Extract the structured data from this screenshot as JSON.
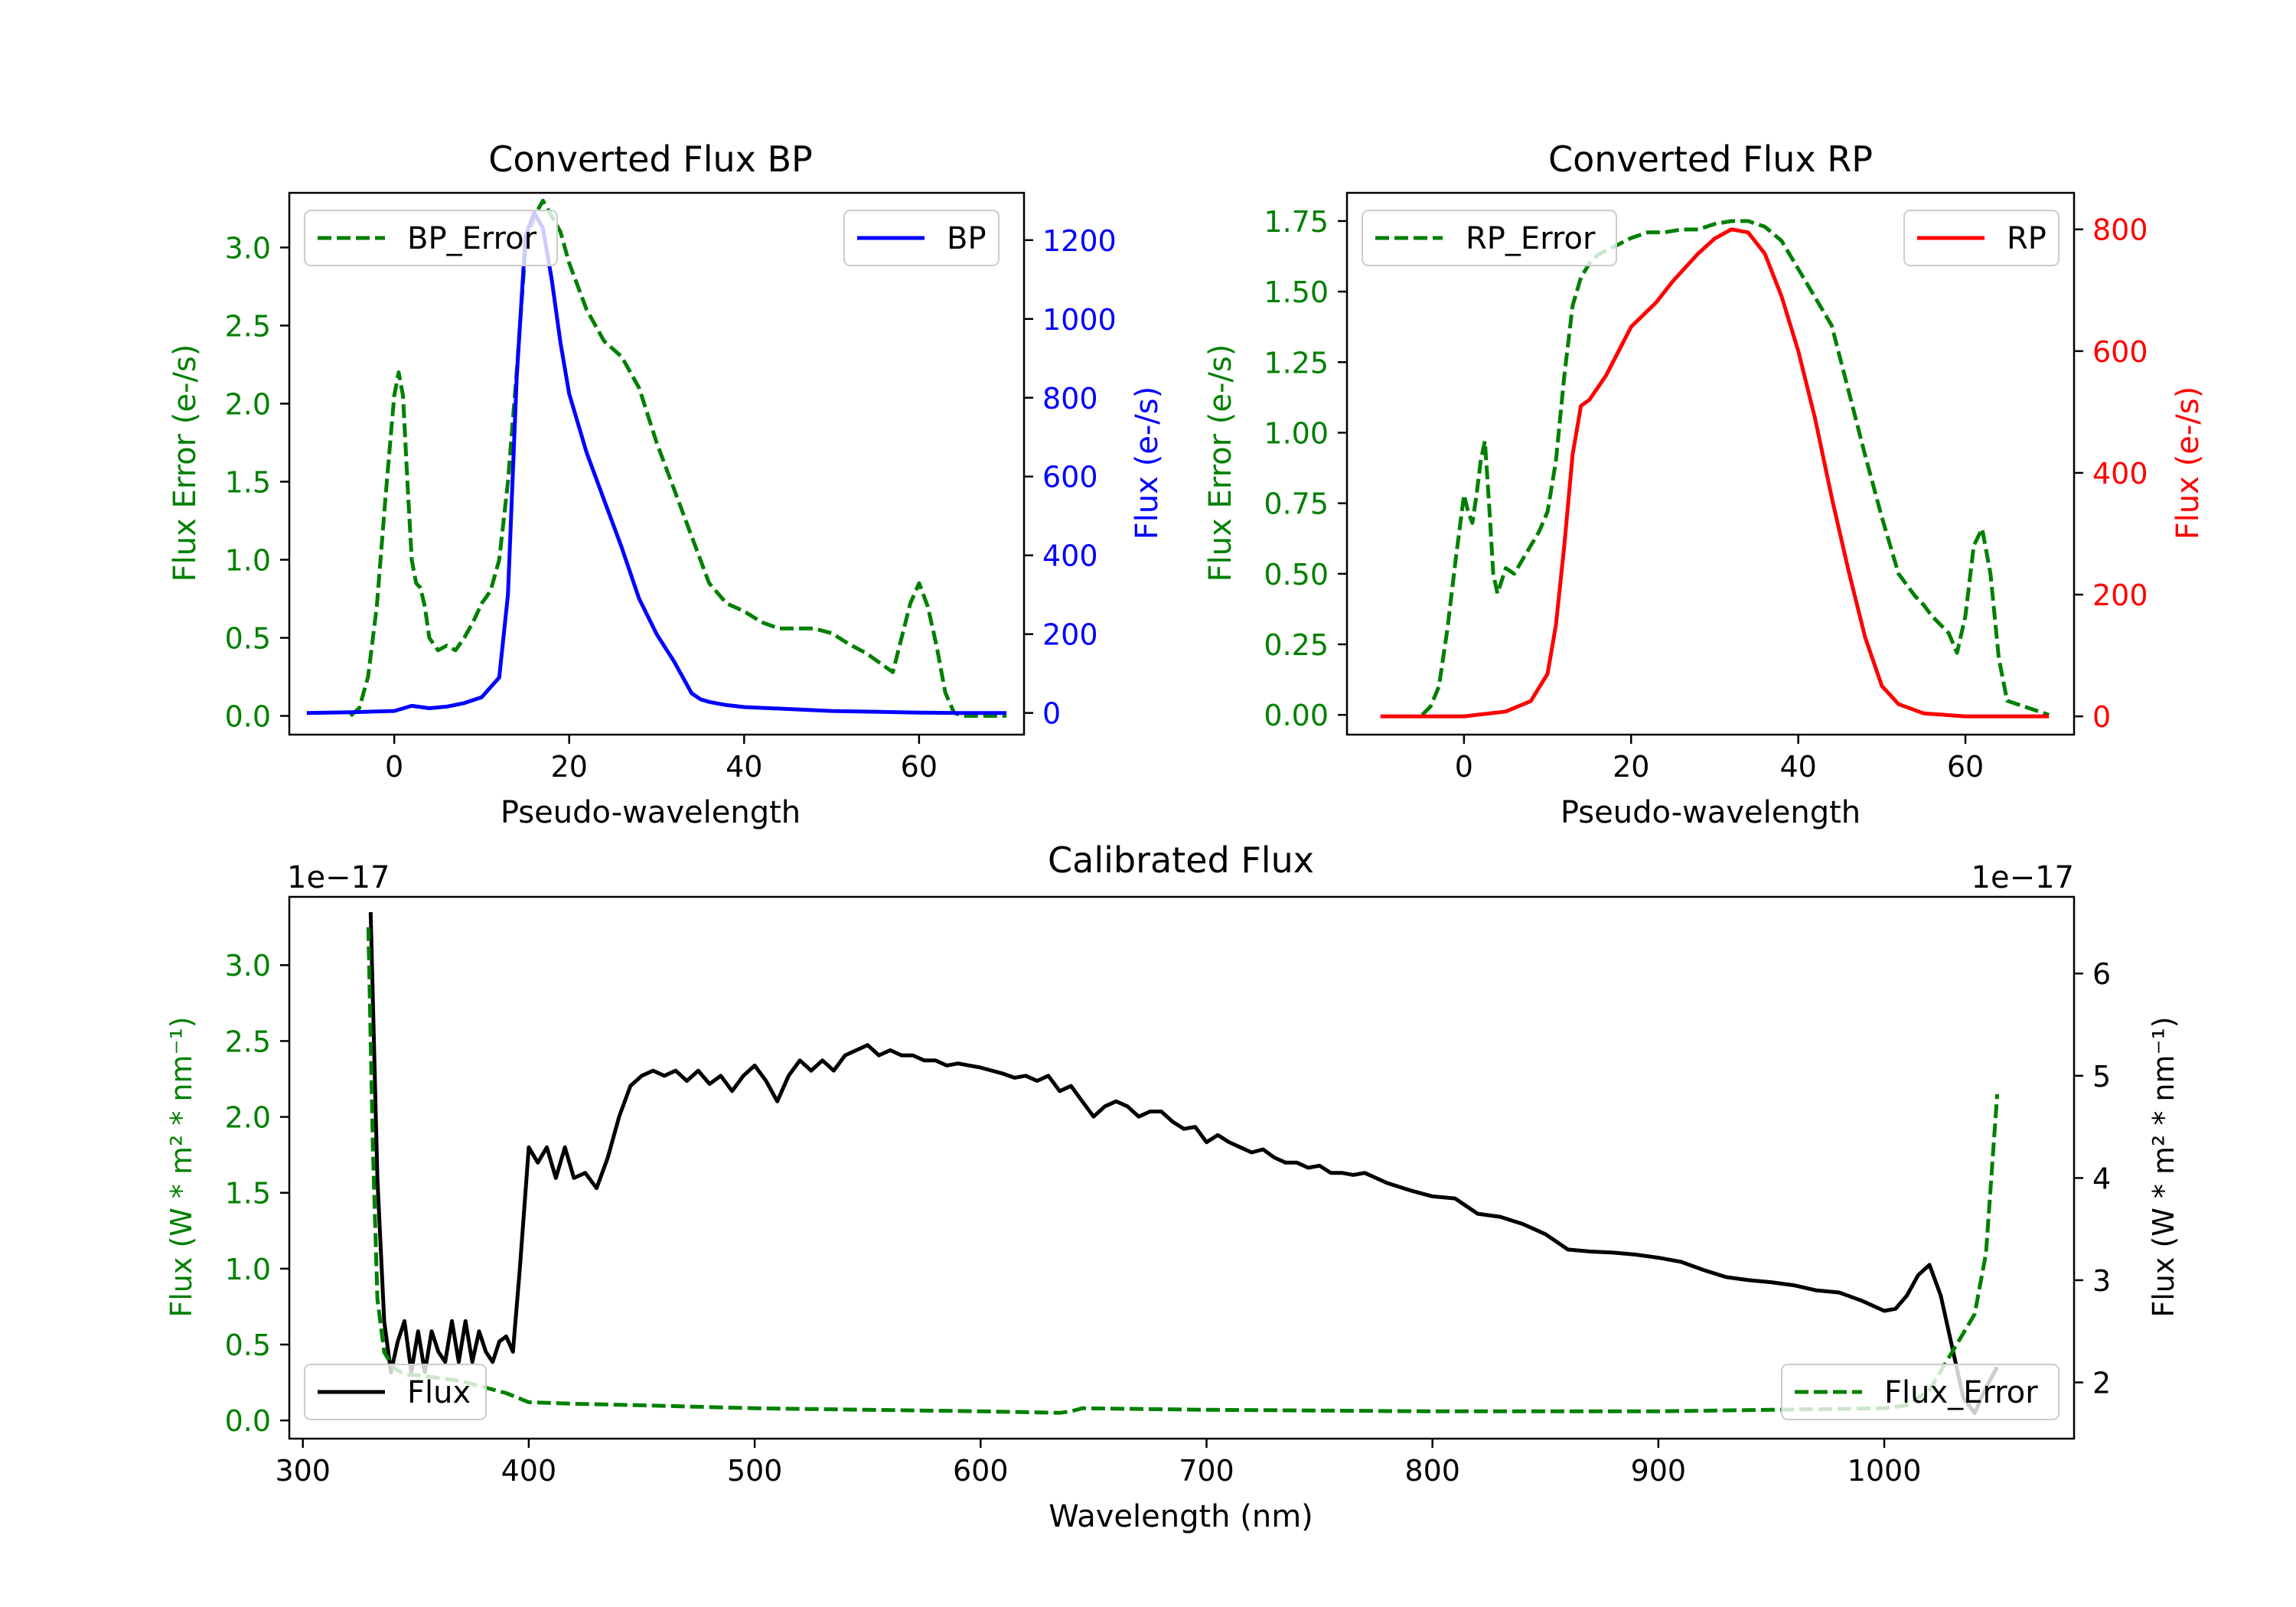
{
  "chart_data": [
    {
      "type": "line",
      "title": "Converted Flux BP",
      "xlabel": "Pseudo-wavelength",
      "ylabel_left": "Flux Error (e-/s)",
      "ylabel_right": "Flux (e-/s)",
      "xlim": [
        -12,
        72
      ],
      "ylim_left": [
        -0.12,
        3.35
      ],
      "ylim_right": [
        -55,
        1320
      ],
      "x_ticks": [
        0,
        20,
        40,
        60
      ],
      "x_tick_labels": [
        "0",
        "20",
        "40",
        "60"
      ],
      "y_left_ticks": [
        0,
        0.5,
        1.0,
        1.5,
        2.0,
        2.5,
        3.0
      ],
      "y_left_tick_labels": [
        "0.0",
        "0.5",
        "1.0",
        "1.5",
        "2.0",
        "2.5",
        "3.0"
      ],
      "y_right_ticks": [
        0,
        200,
        400,
        600,
        800,
        1000,
        1200
      ],
      "y_right_tick_labels": [
        "0",
        "200",
        "400",
        "600",
        "800",
        "1000",
        "1200"
      ],
      "left_axis_color": "#008000",
      "right_axis_color": "#0000ff",
      "legend": [
        {
          "label": "BP_Error",
          "placement": "upper-left",
          "style": "dashed",
          "color": "#008000"
        },
        {
          "label": "BP",
          "placement": "upper-right",
          "style": "solid",
          "color": "#0000ff"
        }
      ],
      "series": [
        {
          "name": "BP_Error",
          "axis": "left",
          "color": "#008000",
          "style": "dashed",
          "x": [
            -5,
            -4,
            -3,
            -2,
            -1,
            0,
            0.5,
            1,
            1.5,
            2,
            2.5,
            3,
            3.5,
            4,
            5,
            6,
            7,
            8,
            9,
            10,
            11,
            12,
            13,
            14,
            15,
            16,
            17,
            18,
            19,
            20,
            22,
            24,
            26,
            28,
            30,
            32,
            34,
            36,
            38,
            40,
            42,
            44,
            46,
            48,
            50,
            52,
            54,
            56,
            57,
            58,
            59,
            60,
            61,
            62,
            63,
            64,
            65,
            70
          ],
          "values": [
            0.0,
            0.05,
            0.25,
            0.7,
            1.4,
            2.05,
            2.2,
            2.05,
            1.5,
            1.0,
            0.85,
            0.82,
            0.7,
            0.5,
            0.42,
            0.45,
            0.42,
            0.5,
            0.6,
            0.72,
            0.8,
            1.0,
            1.5,
            2.2,
            3.0,
            3.2,
            3.3,
            3.2,
            3.1,
            2.9,
            2.6,
            2.4,
            2.3,
            2.1,
            1.75,
            1.45,
            1.15,
            0.85,
            0.72,
            0.67,
            0.6,
            0.56,
            0.56,
            0.56,
            0.53,
            0.46,
            0.4,
            0.32,
            0.28,
            0.5,
            0.72,
            0.85,
            0.7,
            0.45,
            0.15,
            0.02,
            0.0,
            0.0
          ]
        },
        {
          "name": "BP",
          "axis": "right",
          "color": "#0000ff",
          "style": "solid",
          "x": [
            -10,
            -5,
            0,
            2,
            4,
            6,
            8,
            10,
            12,
            13,
            14,
            15,
            16,
            17,
            18,
            19,
            20,
            22,
            24,
            26,
            28,
            30,
            32,
            34,
            35,
            36,
            38,
            40,
            45,
            50,
            55,
            60,
            65,
            70
          ],
          "values": [
            0,
            2,
            5,
            18,
            12,
            16,
            25,
            40,
            90,
            300,
            850,
            1210,
            1270,
            1230,
            1100,
            940,
            810,
            660,
            540,
            420,
            290,
            200,
            130,
            50,
            35,
            28,
            20,
            15,
            10,
            5,
            3,
            1,
            0,
            0
          ]
        }
      ]
    },
    {
      "type": "line",
      "title": "Converted Flux RP",
      "xlabel": "Pseudo-wavelength",
      "ylabel_left": "Flux Error (e-/s)",
      "ylabel_right": "Flux (e-/s)",
      "xlim": [
        -14,
        73
      ],
      "ylim_left": [
        -0.07,
        1.85
      ],
      "ylim_right": [
        -30,
        860
      ],
      "x_ticks": [
        0,
        20,
        40,
        60
      ],
      "x_tick_labels": [
        "0",
        "20",
        "40",
        "60"
      ],
      "y_left_ticks": [
        0,
        0.25,
        0.5,
        0.75,
        1.0,
        1.25,
        1.5,
        1.75
      ],
      "y_left_tick_labels": [
        "0.00",
        "0.25",
        "0.50",
        "0.75",
        "1.00",
        "1.25",
        "1.50",
        "1.75"
      ],
      "y_right_ticks": [
        0,
        200,
        400,
        600,
        800
      ],
      "y_right_tick_labels": [
        "0",
        "200",
        "400",
        "600",
        "800"
      ],
      "left_axis_color": "#008000",
      "right_axis_color": "#ff0000",
      "legend": [
        {
          "label": "RP_Error",
          "placement": "upper-left",
          "style": "dashed",
          "color": "#008000"
        },
        {
          "label": "RP",
          "placement": "upper-right",
          "style": "solid",
          "color": "#ff0000"
        }
      ],
      "series": [
        {
          "name": "RP_Error",
          "axis": "left",
          "color": "#008000",
          "style": "dashed",
          "x": [
            -5,
            -4,
            -3,
            -2,
            -1,
            0,
            0.5,
            1,
            1.5,
            2,
            2.5,
            3,
            3.5,
            4,
            5,
            6,
            7,
            8,
            9,
            10,
            11,
            12,
            13,
            14,
            15,
            16,
            18,
            20,
            22,
            24,
            26,
            28,
            30,
            32,
            34,
            36,
            38,
            40,
            42,
            44,
            46,
            48,
            50,
            52,
            54,
            55,
            56,
            57,
            58,
            59,
            60,
            61,
            62,
            63,
            64,
            65,
            70
          ],
          "values": [
            0.0,
            0.03,
            0.1,
            0.3,
            0.55,
            0.78,
            0.72,
            0.68,
            0.78,
            0.9,
            0.97,
            0.75,
            0.5,
            0.43,
            0.52,
            0.5,
            0.55,
            0.6,
            0.65,
            0.72,
            0.9,
            1.2,
            1.45,
            1.55,
            1.6,
            1.63,
            1.66,
            1.69,
            1.71,
            1.71,
            1.72,
            1.72,
            1.74,
            1.75,
            1.75,
            1.73,
            1.68,
            1.58,
            1.48,
            1.38,
            1.15,
            0.92,
            0.7,
            0.5,
            0.42,
            0.39,
            0.35,
            0.32,
            0.29,
            0.22,
            0.35,
            0.6,
            0.66,
            0.5,
            0.2,
            0.05,
            0.0
          ]
        },
        {
          "name": "RP",
          "axis": "right",
          "color": "#ff0000",
          "style": "solid",
          "x": [
            -10,
            -5,
            0,
            5,
            8,
            10,
            11,
            12,
            13,
            14,
            15,
            17,
            20,
            23,
            25,
            28,
            30,
            32,
            34,
            36,
            38,
            40,
            42,
            44,
            46,
            48,
            50,
            52,
            55,
            60,
            65,
            70
          ],
          "values": [
            0,
            0,
            0,
            8,
            25,
            70,
            150,
            280,
            430,
            510,
            520,
            560,
            640,
            680,
            715,
            760,
            785,
            800,
            795,
            760,
            690,
            600,
            490,
            360,
            240,
            130,
            50,
            20,
            5,
            0,
            0,
            0
          ]
        }
      ]
    },
    {
      "type": "line",
      "title": "Calibrated Flux",
      "xlabel": "Wavelength (nm)",
      "ylabel_left": "Flux (W * m² * nm⁻¹)",
      "ylabel_right": "Flux (W * m² * nm⁻¹)",
      "offset_left": "1e−17",
      "offset_right": "1e−17",
      "xlim": [
        294,
        1084
      ],
      "ylim_left": [
        -0.12,
        3.45
      ],
      "ylim_right": [
        1.45,
        6.75
      ],
      "x_ticks": [
        300,
        400,
        500,
        600,
        700,
        800,
        900,
        1000
      ],
      "x_tick_labels": [
        "300",
        "400",
        "500",
        "600",
        "700",
        "800",
        "900",
        "1000"
      ],
      "y_left_ticks": [
        0,
        0.5,
        1.0,
        1.5,
        2.0,
        2.5,
        3.0
      ],
      "y_left_tick_labels": [
        "0.0",
        "0.5",
        "1.0",
        "1.5",
        "2.0",
        "2.5",
        "3.0"
      ],
      "y_right_ticks": [
        2,
        3,
        4,
        5,
        6
      ],
      "y_right_tick_labels": [
        "2",
        "3",
        "4",
        "5",
        "6"
      ],
      "left_axis_color": "#008000",
      "right_axis_color": "#000000",
      "legend": [
        {
          "label": "Flux",
          "placement": "lower-left",
          "style": "solid",
          "color": "#000000"
        },
        {
          "label": "Flux_Error",
          "placement": "lower-right",
          "style": "dashed",
          "color": "#008000"
        }
      ],
      "series": [
        {
          "name": "Flux",
          "axis": "right",
          "color": "#000000",
          "style": "solid",
          "x": [
            330,
            333,
            336,
            339,
            342,
            345,
            348,
            351,
            354,
            357,
            360,
            363,
            366,
            369,
            372,
            375,
            378,
            381,
            384,
            387,
            390,
            393,
            396,
            400,
            404,
            408,
            412,
            416,
            420,
            425,
            430,
            435,
            440,
            445,
            450,
            455,
            460,
            465,
            470,
            475,
            480,
            485,
            490,
            495,
            500,
            505,
            510,
            515,
            520,
            525,
            530,
            535,
            540,
            545,
            550,
            555,
            560,
            565,
            570,
            575,
            580,
            585,
            590,
            595,
            600,
            605,
            610,
            615,
            620,
            625,
            630,
            635,
            640,
            645,
            650,
            655,
            660,
            665,
            670,
            675,
            680,
            685,
            690,
            695,
            700,
            705,
            710,
            715,
            720,
            725,
            730,
            735,
            740,
            745,
            750,
            755,
            760,
            765,
            770,
            780,
            790,
            800,
            810,
            820,
            830,
            840,
            850,
            860,
            870,
            880,
            890,
            900,
            910,
            920,
            930,
            940,
            950,
            960,
            970,
            980,
            990,
            1000,
            1005,
            1010,
            1015,
            1020,
            1025,
            1030,
            1035,
            1040,
            1045,
            1050
          ],
          "values": [
            6.6,
            4.0,
            2.6,
            2.1,
            2.4,
            2.6,
            2.1,
            2.5,
            2.1,
            2.5,
            2.3,
            2.2,
            2.6,
            2.2,
            2.6,
            2.2,
            2.5,
            2.3,
            2.2,
            2.4,
            2.45,
            2.3,
            3.1,
            4.3,
            4.15,
            4.3,
            4.0,
            4.3,
            4.0,
            4.05,
            3.9,
            4.2,
            4.6,
            4.9,
            5.0,
            5.05,
            5.0,
            5.05,
            4.95,
            5.05,
            4.92,
            5.0,
            4.85,
            5.0,
            5.1,
            4.95,
            4.75,
            5.0,
            5.15,
            5.05,
            5.15,
            5.05,
            5.2,
            5.25,
            5.3,
            5.2,
            5.25,
            5.2,
            5.2,
            5.15,
            5.15,
            5.1,
            5.12,
            5.1,
            5.08,
            5.05,
            5.02,
            4.98,
            5.0,
            4.95,
            5.0,
            4.85,
            4.9,
            4.75,
            4.6,
            4.7,
            4.75,
            4.7,
            4.6,
            4.65,
            4.65,
            4.55,
            4.48,
            4.5,
            4.35,
            4.42,
            4.35,
            4.3,
            4.25,
            4.28,
            4.2,
            4.15,
            4.15,
            4.1,
            4.12,
            4.05,
            4.05,
            4.03,
            4.05,
            3.95,
            3.88,
            3.82,
            3.8,
            3.65,
            3.62,
            3.55,
            3.45,
            3.3,
            3.28,
            3.27,
            3.25,
            3.22,
            3.18,
            3.1,
            3.03,
            3.0,
            2.98,
            2.95,
            2.9,
            2.88,
            2.8,
            2.7,
            2.72,
            2.85,
            3.05,
            3.15,
            2.85,
            2.35,
            1.85,
            1.7,
            1.95,
            2.15
          ]
        },
        {
          "name": "Flux_Error",
          "axis": "left",
          "color": "#008000",
          "style": "dashed",
          "x": [
            329,
            331,
            333,
            336,
            340,
            345,
            350,
            360,
            370,
            380,
            390,
            400,
            420,
            450,
            500,
            550,
            600,
            635,
            640,
            645,
            700,
            800,
            900,
            950,
            1000,
            1010,
            1020,
            1030,
            1040,
            1045,
            1050
          ],
          "values": [
            3.25,
            1.8,
            0.8,
            0.45,
            0.35,
            0.3,
            0.3,
            0.28,
            0.26,
            0.22,
            0.18,
            0.12,
            0.11,
            0.1,
            0.08,
            0.07,
            0.06,
            0.05,
            0.06,
            0.08,
            0.07,
            0.06,
            0.06,
            0.07,
            0.08,
            0.1,
            0.2,
            0.45,
            0.7,
            1.1,
            2.15
          ]
        }
      ]
    }
  ]
}
